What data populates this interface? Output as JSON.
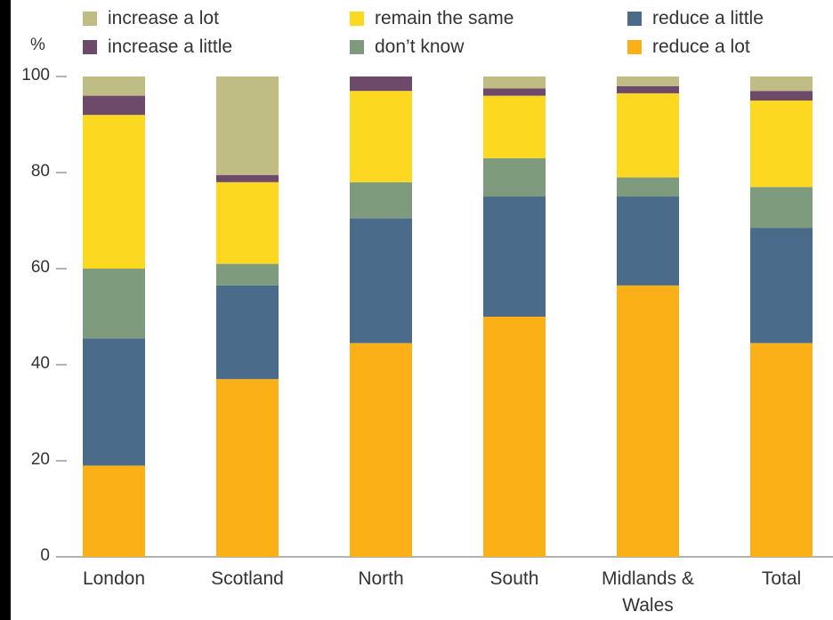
{
  "chart_data": {
    "type": "bar",
    "stacked": true,
    "ylabel_unit": "%",
    "ylim": [
      0,
      100
    ],
    "yticks": [
      "0",
      "20",
      "40",
      "60",
      "80",
      "100"
    ],
    "categories": [
      "London",
      "Scotland",
      "North",
      "South",
      "Midlands & Wales",
      "Total"
    ],
    "series": [
      {
        "name": "reduce a lot",
        "color": "#FBB018",
        "values": [
          19,
          37,
          44.5,
          50,
          56.5,
          44.5
        ]
      },
      {
        "name": "reduce a little",
        "color": "#4A6B8A",
        "values": [
          26.5,
          19.5,
          26,
          25,
          18.5,
          24
        ]
      },
      {
        "name": "don’t know",
        "color": "#7F9B7E",
        "values": [
          14.5,
          4.5,
          7.5,
          8,
          4,
          8.5
        ]
      },
      {
        "name": "remain the same",
        "color": "#FCD820",
        "values": [
          32,
          17,
          19,
          13,
          17.5,
          18
        ]
      },
      {
        "name": "increase a little",
        "color": "#6E4A6A",
        "values": [
          4,
          1.5,
          3,
          1.5,
          1.5,
          2
        ]
      },
      {
        "name": "increase a lot",
        "color": "#BFBD84",
        "values": [
          4,
          20.5,
          0,
          2.5,
          2,
          3
        ]
      }
    ],
    "legend": [
      {
        "label": "increase a lot",
        "color": "#BFBD84"
      },
      {
        "label": "remain the same",
        "color": "#FCD820"
      },
      {
        "label": "reduce a little",
        "color": "#4A6B8A"
      },
      {
        "label": "increase a little",
        "color": "#6E4A6A"
      },
      {
        "label": "don’t know",
        "color": "#7F9B7E"
      },
      {
        "label": "reduce a lot",
        "color": "#FBB018"
      }
    ],
    "legend_position": "top"
  }
}
